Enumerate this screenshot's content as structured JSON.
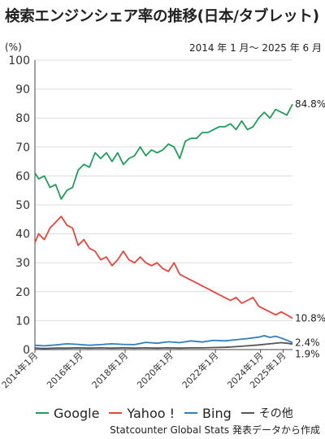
{
  "title": "検索エンジンシェア率の推移(日本/タブレット)",
  "period_note": "2014 年 1 月〜 2025 年 6 月",
  "source": "Statcounter Global Stats 発表データから作成",
  "chart_data": {
    "type": "line",
    "ylabel": "(%)",
    "ylim": [
      0,
      100
    ],
    "yticks": [
      0,
      10,
      20,
      30,
      40,
      50,
      60,
      70,
      80,
      90,
      100
    ],
    "xlim": [
      "2014-01",
      "2025-06"
    ],
    "xticks": [
      {
        "date": "2014-01",
        "label": "2014年1月"
      },
      {
        "date": "2016-01",
        "label": "2016年1月"
      },
      {
        "date": "2018-01",
        "label": "2018年1月"
      },
      {
        "date": "2020-01",
        "label": "2020年1月"
      },
      {
        "date": "2022-01",
        "label": "2022年1月"
      },
      {
        "date": "2024-01",
        "label": "2024年1月"
      },
      {
        "date": "2025-01",
        "label": "2025年1月"
      }
    ],
    "legend_position": "bottom",
    "series": [
      {
        "name": "Google",
        "color": "#1e9e5a",
        "end_label": "84.8%",
        "points": [
          [
            "2014-01",
            61
          ],
          [
            "2014-03",
            59
          ],
          [
            "2014-06",
            60
          ],
          [
            "2014-09",
            56
          ],
          [
            "2014-12",
            57
          ],
          [
            "2015-03",
            52
          ],
          [
            "2015-06",
            55
          ],
          [
            "2015-09",
            56
          ],
          [
            "2015-12",
            62
          ],
          [
            "2016-03",
            64
          ],
          [
            "2016-06",
            63
          ],
          [
            "2016-09",
            68
          ],
          [
            "2016-12",
            66
          ],
          [
            "2017-03",
            68
          ],
          [
            "2017-06",
            65
          ],
          [
            "2017-09",
            68
          ],
          [
            "2017-12",
            64
          ],
          [
            "2018-03",
            66
          ],
          [
            "2018-06",
            67
          ],
          [
            "2018-09",
            70
          ],
          [
            "2018-12",
            67
          ],
          [
            "2019-03",
            69
          ],
          [
            "2019-06",
            68
          ],
          [
            "2019-09",
            69
          ],
          [
            "2019-12",
            71
          ],
          [
            "2020-03",
            70
          ],
          [
            "2020-06",
            66
          ],
          [
            "2020-09",
            72
          ],
          [
            "2020-12",
            73
          ],
          [
            "2021-03",
            73
          ],
          [
            "2021-06",
            75
          ],
          [
            "2021-09",
            75
          ],
          [
            "2021-12",
            76
          ],
          [
            "2022-03",
            77
          ],
          [
            "2022-06",
            77
          ],
          [
            "2022-09",
            78
          ],
          [
            "2022-12",
            76
          ],
          [
            "2023-03",
            79
          ],
          [
            "2023-06",
            76
          ],
          [
            "2023-09",
            77
          ],
          [
            "2023-12",
            80
          ],
          [
            "2024-03",
            82
          ],
          [
            "2024-06",
            80
          ],
          [
            "2024-09",
            83
          ],
          [
            "2024-12",
            82
          ],
          [
            "2025-03",
            81
          ],
          [
            "2025-06",
            84.8
          ]
        ]
      },
      {
        "name": "Yahoo !",
        "color": "#e5463c",
        "end_label": "10.8%",
        "points": [
          [
            "2014-01",
            37
          ],
          [
            "2014-03",
            40
          ],
          [
            "2014-06",
            38
          ],
          [
            "2014-09",
            42
          ],
          [
            "2014-12",
            44
          ],
          [
            "2015-03",
            46
          ],
          [
            "2015-06",
            43
          ],
          [
            "2015-09",
            42
          ],
          [
            "2015-12",
            36
          ],
          [
            "2016-03",
            38
          ],
          [
            "2016-06",
            35
          ],
          [
            "2016-09",
            34
          ],
          [
            "2016-12",
            31
          ],
          [
            "2017-03",
            32
          ],
          [
            "2017-06",
            29
          ],
          [
            "2017-09",
            31
          ],
          [
            "2017-12",
            34
          ],
          [
            "2018-03",
            31
          ],
          [
            "2018-06",
            30
          ],
          [
            "2018-09",
            32
          ],
          [
            "2018-12",
            30
          ],
          [
            "2019-03",
            29
          ],
          [
            "2019-06",
            30
          ],
          [
            "2019-09",
            28
          ],
          [
            "2019-12",
            27
          ],
          [
            "2020-03",
            30
          ],
          [
            "2020-06",
            26
          ],
          [
            "2020-09",
            25
          ],
          [
            "2020-12",
            24
          ],
          [
            "2021-03",
            23
          ],
          [
            "2021-06",
            22
          ],
          [
            "2021-09",
            21
          ],
          [
            "2021-12",
            20
          ],
          [
            "2022-03",
            19
          ],
          [
            "2022-06",
            18
          ],
          [
            "2022-09",
            17
          ],
          [
            "2022-12",
            18
          ],
          [
            "2023-03",
            16
          ],
          [
            "2023-06",
            17
          ],
          [
            "2023-09",
            18
          ],
          [
            "2023-12",
            15
          ],
          [
            "2024-03",
            14
          ],
          [
            "2024-06",
            13
          ],
          [
            "2024-09",
            12
          ],
          [
            "2024-12",
            13
          ],
          [
            "2025-03",
            12
          ],
          [
            "2025-06",
            10.8
          ]
        ]
      },
      {
        "name": "Bing",
        "color": "#2f7fc1",
        "end_label": "2.4%",
        "points": [
          [
            "2014-01",
            1.5
          ],
          [
            "2014-06",
            1.3
          ],
          [
            "2014-12",
            1.6
          ],
          [
            "2015-06",
            2
          ],
          [
            "2015-12",
            1.8
          ],
          [
            "2016-06",
            1.5
          ],
          [
            "2016-12",
            1.7
          ],
          [
            "2017-06",
            2
          ],
          [
            "2017-12",
            1.8
          ],
          [
            "2018-06",
            1.7
          ],
          [
            "2018-12",
            2.5
          ],
          [
            "2019-06",
            2.2
          ],
          [
            "2019-12",
            2.7
          ],
          [
            "2020-06",
            2.4
          ],
          [
            "2020-12",
            3
          ],
          [
            "2021-06",
            2.6
          ],
          [
            "2021-12",
            3.2
          ],
          [
            "2022-06",
            3
          ],
          [
            "2022-12",
            3.4
          ],
          [
            "2023-06",
            3.8
          ],
          [
            "2023-12",
            4.3
          ],
          [
            "2024-03",
            4.8
          ],
          [
            "2024-06",
            4.2
          ],
          [
            "2024-09",
            4.6
          ],
          [
            "2024-12",
            4
          ],
          [
            "2025-03",
            3.2
          ],
          [
            "2025-06",
            2.4
          ]
        ]
      },
      {
        "name": "その他",
        "color": "#555555",
        "end_label": "1.9%",
        "points": [
          [
            "2014-01",
            0.5
          ],
          [
            "2014-06",
            0.4
          ],
          [
            "2014-12",
            0.5
          ],
          [
            "2015-06",
            0.5
          ],
          [
            "2015-12",
            0.6
          ],
          [
            "2016-06",
            0.5
          ],
          [
            "2016-12",
            0.6
          ],
          [
            "2017-06",
            0.5
          ],
          [
            "2017-12",
            0.6
          ],
          [
            "2018-06",
            0.5
          ],
          [
            "2018-12",
            0.6
          ],
          [
            "2019-06",
            0.5
          ],
          [
            "2019-12",
            0.6
          ],
          [
            "2020-06",
            0.5
          ],
          [
            "2020-12",
            0.6
          ],
          [
            "2021-06",
            0.6
          ],
          [
            "2021-12",
            0.7
          ],
          [
            "2022-06",
            0.8
          ],
          [
            "2022-12",
            1
          ],
          [
            "2023-06",
            1.3
          ],
          [
            "2023-12",
            1.6
          ],
          [
            "2024-06",
            2
          ],
          [
            "2024-12",
            2.4
          ],
          [
            "2025-03",
            2.2
          ],
          [
            "2025-06",
            1.9
          ]
        ]
      }
    ]
  }
}
